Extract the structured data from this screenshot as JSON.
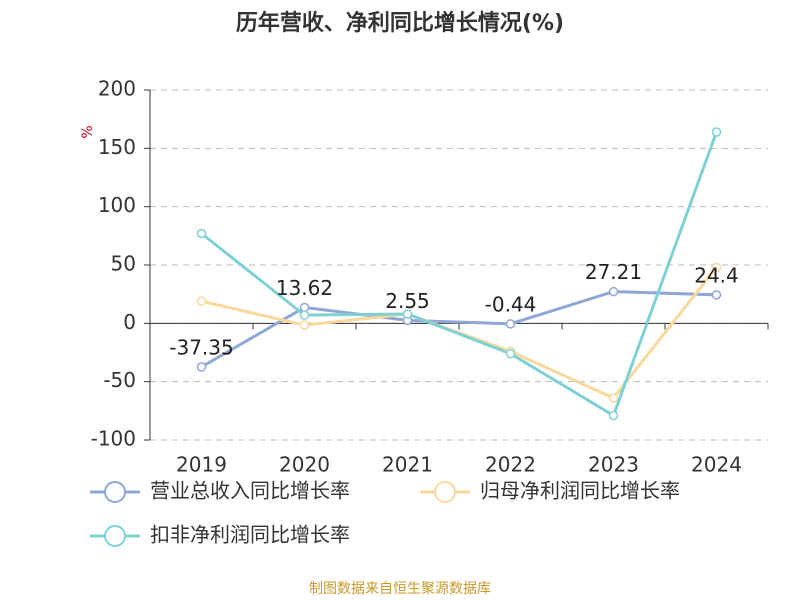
{
  "chart_data": {
    "type": "line",
    "title": "历年营收、净利同比增长情况(%)",
    "y_label": "%",
    "source": "制图数据来自恒生聚源数据库",
    "categories": [
      "2019",
      "2020",
      "2021",
      "2022",
      "2023",
      "2024"
    ],
    "series": [
      {
        "name": "营业总收入同比增长率",
        "color": "#8ea7d5",
        "values": [
          -37.35,
          13.62,
          2.55,
          -0.44,
          27.21,
          24.4
        ]
      },
      {
        "name": "归母净利润同比增长率",
        "color": "#f9d89b",
        "values": [
          19,
          -1.5,
          8,
          -24,
          -64,
          48
        ]
      },
      {
        "name": "扣非净利润同比增长率",
        "color": "#7fd0d5",
        "values": [
          77,
          7,
          8,
          -26,
          -79,
          164
        ]
      }
    ],
    "ylim": [
      -100,
      200
    ],
    "yticks": [
      -100,
      -50,
      0,
      50,
      100,
      150,
      200
    ],
    "grid": true
  }
}
